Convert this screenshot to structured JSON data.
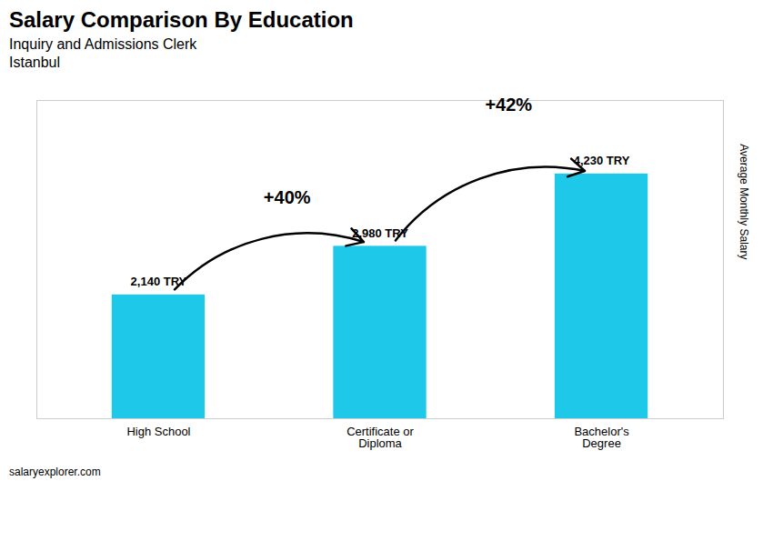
{
  "chart_data": {
    "type": "bar",
    "title": "Salary Comparison By Education",
    "subtitle": [
      "Inquiry and Admissions Clerk",
      "Istanbul"
    ],
    "ylabel": "Average Monthly Salary",
    "categories": [
      "High School",
      "Certificate or\nDiploma",
      "Bachelor's\nDegree"
    ],
    "values": [
      2140,
      2980,
      4230
    ],
    "value_labels": [
      "2,140 TRY",
      "2,980 TRY",
      "4,230 TRY"
    ],
    "data_labels": true,
    "color": "#1ec8e8",
    "annotations": [
      "+40%",
      "+42%"
    ],
    "source": "salaryexplorer.com",
    "ylim": [
      0,
      5500
    ],
    "yticks": [],
    "tick_labels": "x",
    "grid": false
  }
}
